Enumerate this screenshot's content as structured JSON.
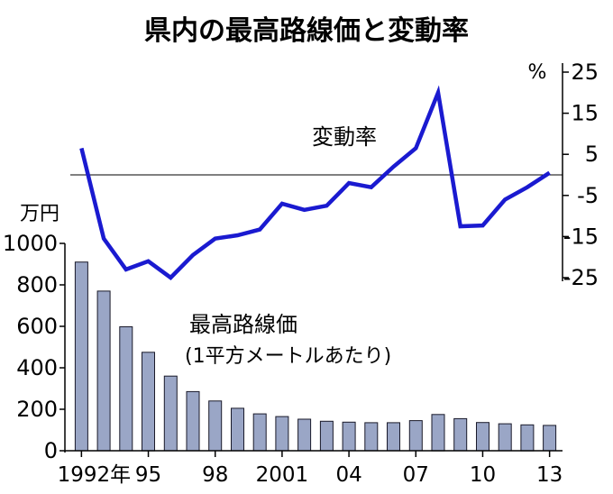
{
  "title": "県内の最高路線価と変動率",
  "chart_data": {
    "type": "bar+line",
    "categories": [
      "1992",
      "1993",
      "1994",
      "1995",
      "1996",
      "1997",
      "1998",
      "1999",
      "2000",
      "2001",
      "2002",
      "2003",
      "2004",
      "2005",
      "2006",
      "2007",
      "2008",
      "2009",
      "2010",
      "2011",
      "2012",
      "2013"
    ],
    "x_tick_labels": [
      {
        "category": "1992",
        "label": "1992年"
      },
      {
        "category": "1995",
        "label": "95"
      },
      {
        "category": "1998",
        "label": "98"
      },
      {
        "category": "2001",
        "label": "2001"
      },
      {
        "category": "2004",
        "label": "04"
      },
      {
        "category": "2007",
        "label": "07"
      },
      {
        "category": "2010",
        "label": "10"
      },
      {
        "category": "2013",
        "label": "13"
      }
    ],
    "bars": {
      "name": "最高路線価",
      "note": "(1平方メートルあたり)",
      "unit": "万円",
      "values": [
        910,
        770,
        598,
        475,
        360,
        285,
        240,
        205,
        178,
        165,
        152,
        142,
        138,
        135,
        135,
        145,
        175,
        155,
        136,
        130,
        125,
        122
      ],
      "ylim": [
        0,
        1000
      ],
      "ticks": [
        0,
        200,
        400,
        600,
        800,
        1000
      ],
      "color": "#9aa6c6"
    },
    "line": {
      "name": "変動率",
      "unit": "%",
      "values": [
        6.5,
        -15.5,
        -23,
        -21,
        -25,
        -19.5,
        -15.5,
        -14.7,
        -13.3,
        -7,
        -8.5,
        -7.5,
        -2,
        -3,
        2,
        6.5,
        20,
        -12.5,
        -12.3,
        -6,
        -3,
        0.5
      ],
      "ylim": [
        -25,
        25
      ],
      "ticks": [
        25,
        15,
        5,
        -5,
        -15,
        -25
      ],
      "zero_line": true,
      "color": "#1a1ad0"
    }
  }
}
